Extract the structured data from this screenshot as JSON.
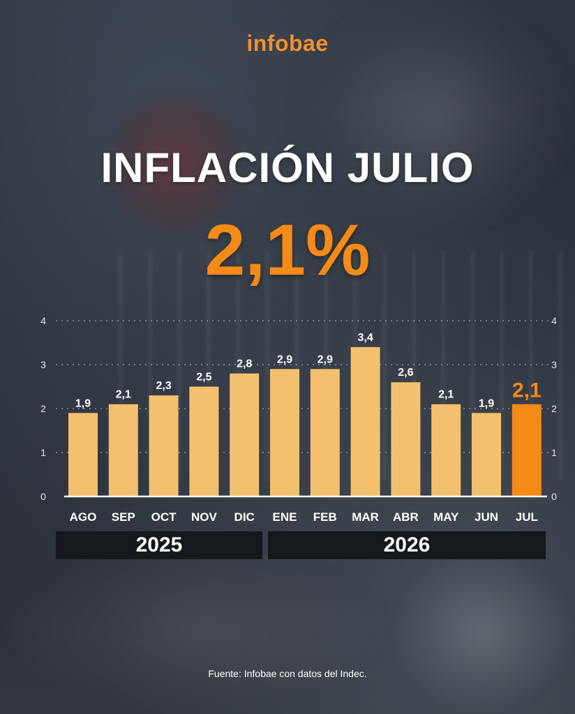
{
  "brand": {
    "logo_text": "infobae"
  },
  "headline": {
    "title": "INFLACIÓN JULIO",
    "value": "2,1%"
  },
  "colors": {
    "bar": "#f3c16e",
    "highlight": "#f58a17",
    "band": "#15181c"
  },
  "chart_data": {
    "type": "bar",
    "categories": [
      "AGO",
      "SEP",
      "OCT",
      "NOV",
      "DIC",
      "ENE",
      "FEB",
      "MAR",
      "ABR",
      "MAY",
      "JUN",
      "JUL"
    ],
    "values": [
      1.9,
      2.1,
      2.3,
      2.5,
      2.8,
      2.9,
      2.9,
      3.4,
      2.6,
      2.1,
      1.9,
      2.1
    ],
    "value_labels": [
      "1,9",
      "2,1",
      "2,3",
      "2,5",
      "2,8",
      "2,9",
      "2,9",
      "3,4",
      "2,6",
      "2,1",
      "1,9",
      "2,1"
    ],
    "highlight_index": 11,
    "ylim": [
      0,
      4
    ],
    "yticks": [
      "0",
      "1",
      "2",
      "3",
      "4"
    ],
    "grid": true,
    "title": "",
    "xlabel": "",
    "ylabel": "",
    "year_groups": [
      {
        "label": "2025"
      },
      {
        "label": "2026"
      }
    ]
  },
  "footer": {
    "source": "Fuente: Infobae con datos del Indec."
  }
}
